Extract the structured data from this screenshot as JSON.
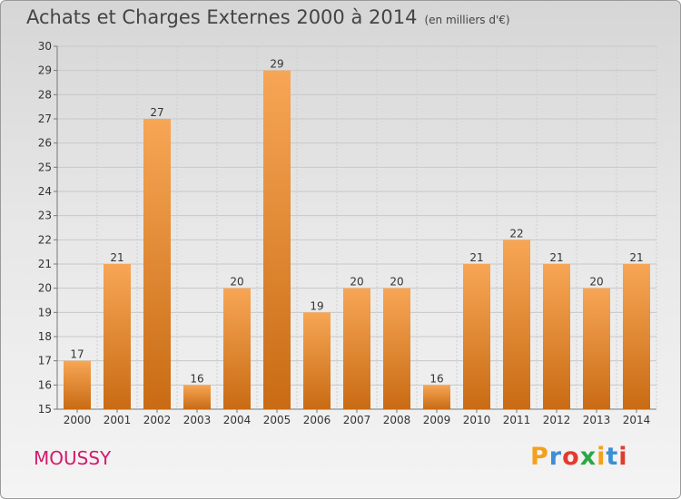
{
  "header": {
    "title": "Achats et Charges Externes 2000 à 2014",
    "subtitle": "(en milliers d'€)"
  },
  "footer": {
    "commune": "MOUSSY",
    "brand": [
      "P",
      "r",
      "o",
      "x",
      "i",
      "t",
      "i"
    ],
    "brand_colors": [
      "#f5a01a",
      "#3a8fd6",
      "#e23b2e",
      "#2aa844",
      "#f5a01a",
      "#3a8fd6",
      "#e23b2e"
    ]
  },
  "chart_data": {
    "type": "bar",
    "title": "Achats et Charges Externes 2000 à 2014",
    "subtitle": "(en milliers d'€)",
    "categories": [
      "2000",
      "2001",
      "2002",
      "2003",
      "2004",
      "2005",
      "2006",
      "2007",
      "2008",
      "2009",
      "2010",
      "2011",
      "2012",
      "2013",
      "2014"
    ],
    "values": [
      17,
      21,
      27,
      16,
      20,
      29,
      19,
      20,
      20,
      16,
      21,
      22,
      21,
      20,
      21
    ],
    "ylim": [
      15,
      30
    ],
    "yticks": [
      15,
      16,
      17,
      18,
      19,
      20,
      21,
      22,
      23,
      24,
      25,
      26,
      27,
      28,
      29,
      30
    ],
    "grid": true,
    "bar_color_light": "#f7a655",
    "bar_color_dark": "#c96b14"
  }
}
